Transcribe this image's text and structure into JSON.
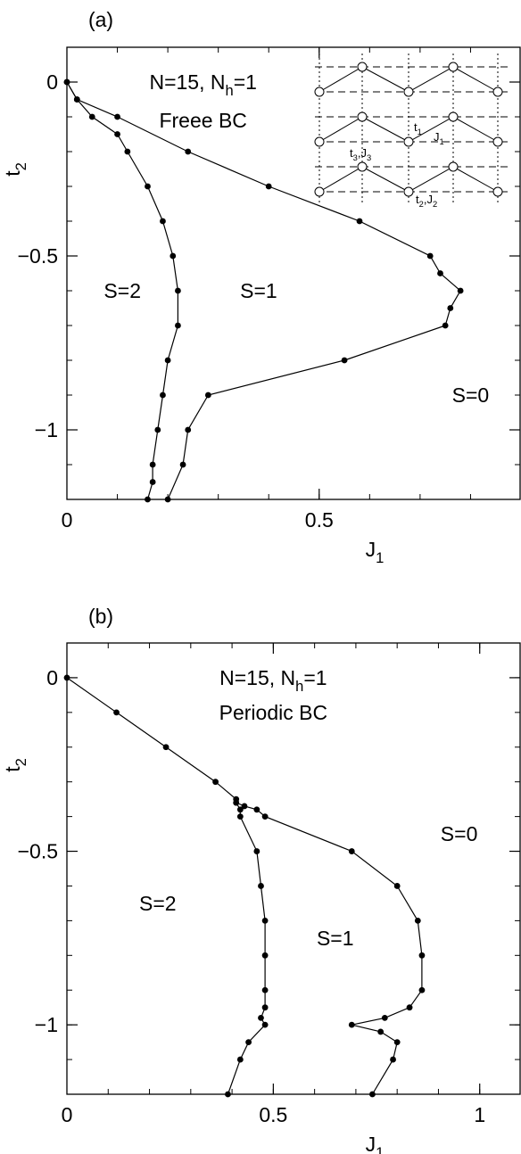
{
  "chart_data": [
    {
      "panel_label": "(a)",
      "type": "line",
      "xlabel": "J",
      "xlabel_sub": "1",
      "ylabel": "t",
      "ylabel_sub": "2",
      "xlim": [
        0,
        0.9
      ],
      "ylim": [
        -1.2,
        0.1
      ],
      "x_ticks": [
        0,
        0.5
      ],
      "x_tick_labels": [
        "0",
        "0.5"
      ],
      "y_ticks": [
        0,
        -0.5,
        -1
      ],
      "y_tick_labels": [
        "0",
        "−0.5",
        "−1"
      ],
      "x_minor_step": 0.1,
      "y_minor_step": 0.1,
      "annotation_lines": [
        {
          "parts": [
            {
              "t": "N=15, N"
            },
            {
              "t": "h",
              "sub": true
            },
            {
              "t": "=1"
            }
          ],
          "x": 0.27,
          "y": 0.0
        },
        {
          "parts": [
            {
              "t": "Freee BC"
            }
          ],
          "x": 0.27,
          "y": -0.11
        }
      ],
      "region_labels": [
        {
          "text": "S=2",
          "x": 0.11,
          "y": -0.6
        },
        {
          "text": "S=1",
          "x": 0.38,
          "y": -0.6
        },
        {
          "text": "S=0",
          "x": 0.8,
          "y": -0.9
        }
      ],
      "series": [
        {
          "x": [
            0.0,
            0.02,
            0.05,
            0.1,
            0.12,
            0.16,
            0.19,
            0.21,
            0.22,
            0.22,
            0.2,
            0.19,
            0.18,
            0.17,
            0.17,
            0.16
          ],
          "y": [
            0.0,
            -0.05,
            -0.1,
            -0.15,
            -0.2,
            -0.3,
            -0.4,
            -0.5,
            -0.6,
            -0.7,
            -0.8,
            -0.9,
            -1.0,
            -1.1,
            -1.15,
            -1.2
          ]
        },
        {
          "x": [
            0.0,
            0.02,
            0.1,
            0.24,
            0.4,
            0.58,
            0.72,
            0.74,
            0.78,
            0.76,
            0.75,
            0.55,
            0.28,
            0.24,
            0.23,
            0.2
          ],
          "y": [
            0.0,
            -0.05,
            -0.1,
            -0.2,
            -0.3,
            -0.4,
            -0.5,
            -0.55,
            -0.6,
            -0.65,
            -0.7,
            -0.8,
            -0.9,
            -1.0,
            -1.1,
            -1.2
          ]
        }
      ],
      "inset": {
        "labels": [
          {
            "parts": [
              {
                "t": "t"
              },
              {
                "t": "1",
                "sub": true
              }
            ]
          },
          {
            "parts": [
              {
                "t": "J"
              },
              {
                "t": "1",
                "sub": true
              }
            ]
          },
          {
            "parts": [
              {
                "t": "t"
              },
              {
                "t": "3",
                "sub": true
              },
              {
                "t": ",J"
              },
              {
                "t": "3",
                "sub": true
              }
            ]
          },
          {
            "parts": [
              {
                "t": "t"
              },
              {
                "t": "2",
                "sub": true
              },
              {
                "t": ",J"
              },
              {
                "t": "2",
                "sub": true
              }
            ]
          }
        ]
      }
    },
    {
      "panel_label": "(b)",
      "type": "line",
      "xlabel": "J",
      "xlabel_sub": "1",
      "ylabel": "t",
      "ylabel_sub": "2",
      "xlim": [
        0,
        1.1
      ],
      "ylim": [
        -1.2,
        0.1
      ],
      "x_ticks": [
        0,
        0.5,
        1
      ],
      "x_tick_labels": [
        "0",
        "0.5",
        "1"
      ],
      "y_ticks": [
        0,
        -0.5,
        -1
      ],
      "y_tick_labels": [
        "0",
        "−0.5",
        "−1"
      ],
      "x_minor_step": 0.1,
      "y_minor_step": 0.1,
      "annotation_lines": [
        {
          "parts": [
            {
              "t": "N=15, N"
            },
            {
              "t": "h",
              "sub": true
            },
            {
              "t": "=1"
            }
          ],
          "x": 0.5,
          "y": 0.0
        },
        {
          "parts": [
            {
              "t": "Periodic BC"
            }
          ],
          "x": 0.5,
          "y": -0.1
        }
      ],
      "region_labels": [
        {
          "text": "S=2",
          "x": 0.22,
          "y": -0.65
        },
        {
          "text": "S=1",
          "x": 0.65,
          "y": -0.75
        },
        {
          "text": "S=0",
          "x": 0.95,
          "y": -0.45
        }
      ],
      "series": [
        {
          "x": [
            0.0,
            0.12,
            0.24,
            0.36,
            0.41,
            0.41,
            0.42,
            0.42,
            0.46,
            0.47,
            0.48,
            0.48,
            0.48,
            0.48,
            0.47,
            0.48,
            0.44,
            0.42,
            0.39
          ],
          "y": [
            0.0,
            -0.1,
            -0.2,
            -0.3,
            -0.35,
            -0.36,
            -0.38,
            -0.4,
            -0.5,
            -0.6,
            -0.7,
            -0.8,
            -0.9,
            -0.95,
            -0.98,
            -1.0,
            -1.05,
            -1.1,
            -1.2
          ]
        },
        {
          "x": [
            0.41,
            0.43,
            0.46,
            0.48,
            0.69,
            0.8,
            0.85,
            0.86,
            0.86,
            0.83,
            0.77,
            0.69,
            0.76,
            0.8,
            0.79,
            0.74
          ],
          "y": [
            -0.36,
            -0.37,
            -0.38,
            -0.4,
            -0.5,
            -0.6,
            -0.7,
            -0.8,
            -0.9,
            -0.95,
            -0.98,
            -1.0,
            -1.02,
            -1.05,
            -1.1,
            -1.2
          ]
        }
      ]
    }
  ]
}
